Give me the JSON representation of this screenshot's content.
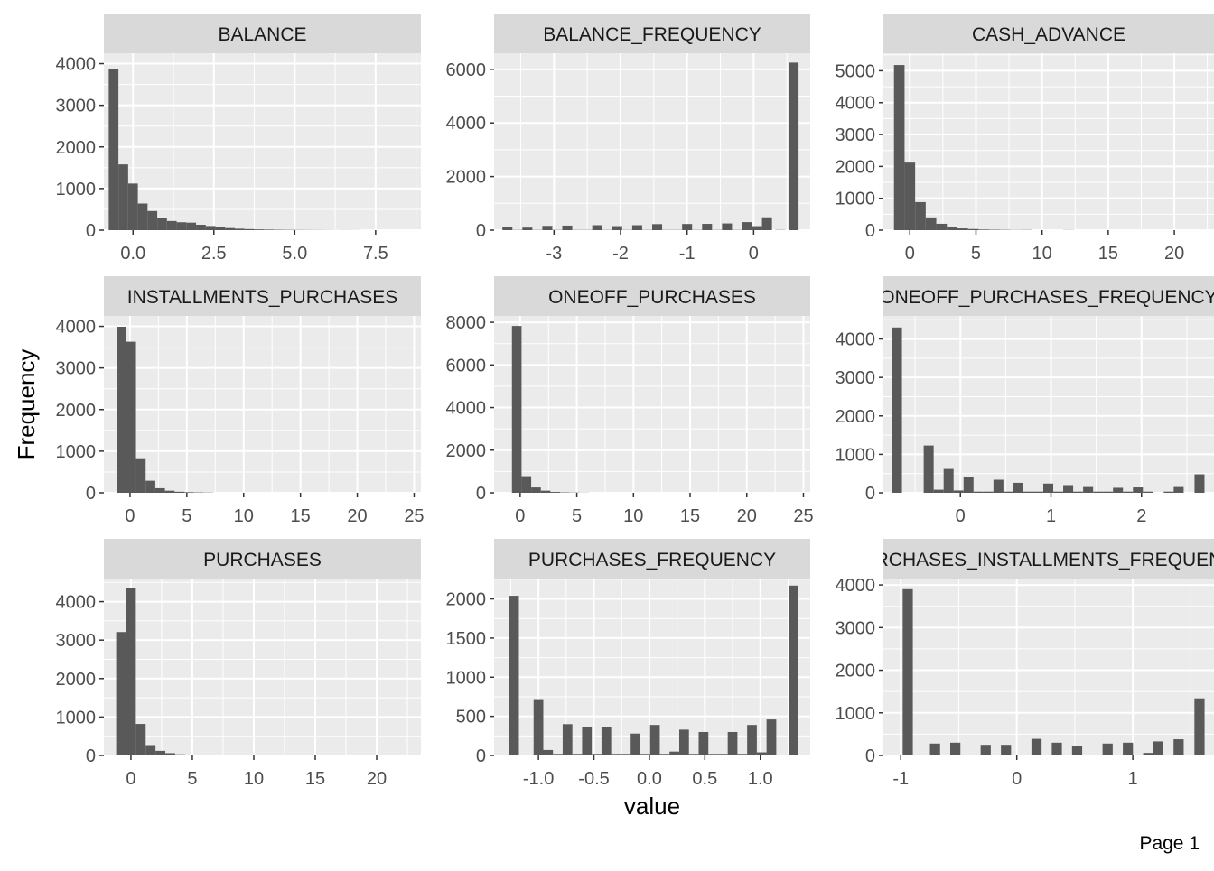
{
  "page": {
    "xlabel": "value",
    "ylabel": "Frequency",
    "footer": "Page 1"
  },
  "colors": {
    "panel_bg": "#ebebeb",
    "strip_bg": "#d9d9d9",
    "grid_major": "#ffffff",
    "bar": "#595959",
    "text": "#4d4d4d",
    "title_text": "#1a1a1a"
  },
  "chart_data": [
    {
      "type": "bar",
      "title": "BALANCE",
      "xlim": [
        -0.9,
        8.9
      ],
      "ylim": [
        0,
        4250
      ],
      "xticks": [
        0,
        2.5,
        5,
        7.5
      ],
      "xtick_labels": [
        "0.0",
        "2.5",
        "5.0",
        "7.5"
      ],
      "yticks": [
        0,
        1000,
        2000,
        3000,
        4000
      ],
      "ytick_labels": [
        "0",
        "1000",
        "2000",
        "3000",
        "4000"
      ],
      "binwidth": 0.3,
      "bins": [
        {
          "x": -0.6,
          "count": 3860
        },
        {
          "x": -0.3,
          "count": 1580
        },
        {
          "x": 0,
          "count": 1120
        },
        {
          "x": 0.3,
          "count": 640
        },
        {
          "x": 0.6,
          "count": 460
        },
        {
          "x": 0.9,
          "count": 300
        },
        {
          "x": 1.2,
          "count": 220
        },
        {
          "x": 1.5,
          "count": 190
        },
        {
          "x": 1.8,
          "count": 180
        },
        {
          "x": 2.1,
          "count": 130
        },
        {
          "x": 2.4,
          "count": 100
        },
        {
          "x": 2.7,
          "count": 70
        },
        {
          "x": 3.0,
          "count": 50
        },
        {
          "x": 3.3,
          "count": 35
        },
        {
          "x": 3.6,
          "count": 25
        },
        {
          "x": 3.9,
          "count": 18
        },
        {
          "x": 4.2,
          "count": 14
        },
        {
          "x": 4.5,
          "count": 10
        },
        {
          "x": 4.8,
          "count": 8
        },
        {
          "x": 5.1,
          "count": 6
        },
        {
          "x": 5.4,
          "count": 5
        },
        {
          "x": 5.7,
          "count": 4
        },
        {
          "x": 6.0,
          "count": 3
        },
        {
          "x": 6.3,
          "count": 2
        },
        {
          "x": 6.6,
          "count": 3
        },
        {
          "x": 6.9,
          "count": 2
        }
      ]
    },
    {
      "type": "bar",
      "title": "BALANCE_FREQUENCY",
      "xlim": [
        -3.9,
        0.85
      ],
      "ylim": [
        0,
        6600
      ],
      "xticks": [
        -3,
        -2,
        -1,
        0
      ],
      "xtick_labels": [
        "-3",
        "-2",
        "-1",
        "0"
      ],
      "yticks": [
        0,
        2000,
        4000,
        6000
      ],
      "ytick_labels": [
        "0",
        "2000",
        "4000",
        "6000"
      ],
      "binwidth": 0.15,
      "bins": [
        {
          "x": -3.7,
          "count": 110
        },
        {
          "x": -3.55,
          "count": 10
        },
        {
          "x": -3.4,
          "count": 95
        },
        {
          "x": -3.25,
          "count": 10
        },
        {
          "x": -3.1,
          "count": 160
        },
        {
          "x": -2.95,
          "count": 10
        },
        {
          "x": -2.8,
          "count": 170
        },
        {
          "x": -2.65,
          "count": 10
        },
        {
          "x": -2.5,
          "count": 10
        },
        {
          "x": -2.35,
          "count": 185
        },
        {
          "x": -2.2,
          "count": 10
        },
        {
          "x": -2.05,
          "count": 150
        },
        {
          "x": -1.9,
          "count": 10
        },
        {
          "x": -1.75,
          "count": 185
        },
        {
          "x": -1.6,
          "count": 10
        },
        {
          "x": -1.45,
          "count": 225
        },
        {
          "x": -1.3,
          "count": 10
        },
        {
          "x": -1.15,
          "count": 10
        },
        {
          "x": -1.0,
          "count": 230
        },
        {
          "x": -0.85,
          "count": 10
        },
        {
          "x": -0.7,
          "count": 235
        },
        {
          "x": -0.55,
          "count": 10
        },
        {
          "x": -0.4,
          "count": 250
        },
        {
          "x": -0.25,
          "count": 10
        },
        {
          "x": -0.1,
          "count": 300
        },
        {
          "x": 0.05,
          "count": 150
        },
        {
          "x": 0.2,
          "count": 480
        },
        {
          "x": 0.4,
          "count": 10
        },
        {
          "x": 0.6,
          "count": 6250
        }
      ]
    },
    {
      "type": "bar",
      "title": "CASH_ADVANCE",
      "xlim": [
        -2.0,
        23.0
      ],
      "ylim": [
        0,
        5550
      ],
      "xticks": [
        0,
        5,
        10,
        15,
        20
      ],
      "xtick_labels": [
        "0",
        "5",
        "10",
        "15",
        "20"
      ],
      "yticks": [
        0,
        1000,
        2000,
        3000,
        4000,
        5000
      ],
      "ytick_labels": [
        "0",
        "1000",
        "2000",
        "3000",
        "4000",
        "5000"
      ],
      "binwidth": 0.8,
      "bins": [
        {
          "x": -0.8,
          "count": 5180
        },
        {
          "x": 0,
          "count": 2120
        },
        {
          "x": 0.8,
          "count": 880
        },
        {
          "x": 1.6,
          "count": 400
        },
        {
          "x": 2.4,
          "count": 200
        },
        {
          "x": 3.2,
          "count": 100
        },
        {
          "x": 4.0,
          "count": 55
        },
        {
          "x": 4.8,
          "count": 35
        },
        {
          "x": 5.6,
          "count": 20
        },
        {
          "x": 6.4,
          "count": 14
        },
        {
          "x": 7.2,
          "count": 10
        },
        {
          "x": 8.0,
          "count": 6
        },
        {
          "x": 8.8,
          "count": 8
        },
        {
          "x": 12.0,
          "count": 5
        }
      ]
    },
    {
      "type": "bar",
      "title": "INSTALLMENTS_PURCHASES",
      "xlim": [
        -2.3,
        25.6
      ],
      "ylim": [
        0,
        4250
      ],
      "xticks": [
        0,
        5,
        10,
        15,
        20,
        25
      ],
      "xtick_labels": [
        "0",
        "5",
        "10",
        "15",
        "20",
        "25"
      ],
      "yticks": [
        0,
        1000,
        2000,
        3000,
        4000
      ],
      "ytick_labels": [
        "0",
        "1000",
        "2000",
        "3000",
        "4000"
      ],
      "binwidth": 0.85,
      "bins": [
        {
          "x": -0.75,
          "count": 3990
        },
        {
          "x": 0.1,
          "count": 3630
        },
        {
          "x": 0.95,
          "count": 830
        },
        {
          "x": 1.8,
          "count": 290
        },
        {
          "x": 2.65,
          "count": 110
        },
        {
          "x": 3.5,
          "count": 50
        },
        {
          "x": 4.35,
          "count": 25
        },
        {
          "x": 5.2,
          "count": 15
        },
        {
          "x": 6.05,
          "count": 10
        },
        {
          "x": 6.9,
          "count": 6
        }
      ]
    },
    {
      "type": "bar",
      "title": "ONEOFF_PURCHASES",
      "xlim": [
        -2.3,
        25.6
      ],
      "ylim": [
        0,
        8300
      ],
      "xticks": [
        0,
        5,
        10,
        15,
        20,
        25
      ],
      "xtick_labels": [
        "0",
        "5",
        "10",
        "15",
        "20",
        "25"
      ],
      "yticks": [
        0,
        2000,
        4000,
        6000,
        8000
      ],
      "ytick_labels": [
        "0",
        "2000",
        "4000",
        "6000",
        "8000"
      ],
      "binwidth": 0.85,
      "bins": [
        {
          "x": -0.3,
          "count": 7830
        },
        {
          "x": 0.55,
          "count": 780
        },
        {
          "x": 1.4,
          "count": 250
        },
        {
          "x": 2.25,
          "count": 100
        },
        {
          "x": 3.1,
          "count": 40
        },
        {
          "x": 3.95,
          "count": 20
        },
        {
          "x": 4.8,
          "count": 12
        },
        {
          "x": 5.65,
          "count": 6
        }
      ]
    },
    {
      "type": "bar",
      "title": "ONEOFF_PURCHASES_FREQUENCY",
      "xlim": [
        -0.85,
        2.8
      ],
      "ylim": [
        0,
        4600
      ],
      "xticks": [
        0,
        1,
        2
      ],
      "xtick_labels": [
        "0",
        "1",
        "2"
      ],
      "yticks": [
        0,
        1000,
        2000,
        3000,
        4000
      ],
      "ytick_labels": [
        "0",
        "1000",
        "2000",
        "3000",
        "4000"
      ],
      "binwidth": 0.11,
      "bins": [
        {
          "x": -0.7,
          "count": 4300
        },
        {
          "x": -0.35,
          "count": 1230
        },
        {
          "x": -0.24,
          "count": 80
        },
        {
          "x": -0.13,
          "count": 620
        },
        {
          "x": -0.02,
          "count": 60
        },
        {
          "x": 0.09,
          "count": 420
        },
        {
          "x": 0.2,
          "count": 30
        },
        {
          "x": 0.31,
          "count": 30
        },
        {
          "x": 0.42,
          "count": 340
        },
        {
          "x": 0.53,
          "count": 30
        },
        {
          "x": 0.64,
          "count": 260
        },
        {
          "x": 0.75,
          "count": 30
        },
        {
          "x": 0.86,
          "count": 30
        },
        {
          "x": 0.97,
          "count": 240
        },
        {
          "x": 1.08,
          "count": 30
        },
        {
          "x": 1.19,
          "count": 200
        },
        {
          "x": 1.3,
          "count": 30
        },
        {
          "x": 1.41,
          "count": 150
        },
        {
          "x": 1.52,
          "count": 30
        },
        {
          "x": 1.63,
          "count": 30
        },
        {
          "x": 1.74,
          "count": 130
        },
        {
          "x": 1.85,
          "count": 30
        },
        {
          "x": 1.96,
          "count": 140
        },
        {
          "x": 2.07,
          "count": 30
        },
        {
          "x": 2.3,
          "count": 30
        },
        {
          "x": 2.41,
          "count": 150
        },
        {
          "x": 2.64,
          "count": 480
        }
      ]
    },
    {
      "type": "bar",
      "title": "PURCHASES",
      "xlim": [
        -2.2,
        23.6
      ],
      "ylim": [
        0,
        4600
      ],
      "xticks": [
        0,
        5,
        10,
        15,
        20
      ],
      "xtick_labels": [
        "0",
        "5",
        "10",
        "15",
        "20"
      ],
      "yticks": [
        0,
        1000,
        2000,
        3000,
        4000
      ],
      "ytick_labels": [
        "0",
        "1000",
        "2000",
        "3000",
        "4000"
      ],
      "binwidth": 0.8,
      "bins": [
        {
          "x": -0.8,
          "count": 3210
        },
        {
          "x": 0,
          "count": 4350
        },
        {
          "x": 0.8,
          "count": 820
        },
        {
          "x": 1.6,
          "count": 270
        },
        {
          "x": 2.4,
          "count": 120
        },
        {
          "x": 3.2,
          "count": 60
        },
        {
          "x": 4.0,
          "count": 30
        },
        {
          "x": 4.8,
          "count": 15
        }
      ]
    },
    {
      "type": "bar",
      "title": "PURCHASES_FREQUENCY",
      "xlim": [
        -1.4,
        1.45
      ],
      "ylim": [
        0,
        2260
      ],
      "xticks": [
        -1.0,
        -0.5,
        0.0,
        0.5,
        1.0
      ],
      "xtick_labels": [
        "-1.0",
        "-0.5",
        "0.0",
        "0.5",
        "1.0"
      ],
      "yticks": [
        0,
        500,
        1000,
        1500,
        2000
      ],
      "ytick_labels": [
        "0",
        "500",
        "1000",
        "1500",
        "2000"
      ],
      "binwidth": 0.0875,
      "bins": [
        {
          "x": -1.22,
          "count": 2040
        },
        {
          "x": -1.0,
          "count": 720
        },
        {
          "x": -0.913,
          "count": 70
        },
        {
          "x": -0.825,
          "count": 20
        },
        {
          "x": -0.738,
          "count": 400
        },
        {
          "x": -0.65,
          "count": 20
        },
        {
          "x": -0.563,
          "count": 360
        },
        {
          "x": -0.475,
          "count": 20
        },
        {
          "x": -0.388,
          "count": 360
        },
        {
          "x": -0.3,
          "count": 20
        },
        {
          "x": -0.213,
          "count": 20
        },
        {
          "x": -0.125,
          "count": 280
        },
        {
          "x": -0.038,
          "count": 20
        },
        {
          "x": 0.05,
          "count": 390
        },
        {
          "x": 0.138,
          "count": 20
        },
        {
          "x": 0.225,
          "count": 50
        },
        {
          "x": 0.313,
          "count": 330
        },
        {
          "x": 0.4,
          "count": 20
        },
        {
          "x": 0.488,
          "count": 300
        },
        {
          "x": 0.575,
          "count": 20
        },
        {
          "x": 0.663,
          "count": 20
        },
        {
          "x": 0.75,
          "count": 300
        },
        {
          "x": 0.838,
          "count": 20
        },
        {
          "x": 0.925,
          "count": 390
        },
        {
          "x": 1.013,
          "count": 40
        },
        {
          "x": 1.1,
          "count": 460
        },
        {
          "x": 1.3,
          "count": 2170
        }
      ]
    },
    {
      "type": "bar",
      "title": "PURCHASES_INSTALLMENTS_FREQUENCY",
      "xlim": [
        -1.15,
        1.7
      ],
      "ylim": [
        0,
        4150
      ],
      "xticks": [
        -1,
        0,
        1
      ],
      "xtick_labels": [
        "-1",
        "0",
        "1"
      ],
      "yticks": [
        0,
        1000,
        2000,
        3000,
        4000
      ],
      "ytick_labels": [
        "0",
        "1000",
        "2000",
        "3000",
        "4000"
      ],
      "binwidth": 0.0875,
      "bins": [
        {
          "x": -0.94,
          "count": 3900
        },
        {
          "x": -0.705,
          "count": 280
        },
        {
          "x": -0.617,
          "count": 20
        },
        {
          "x": -0.53,
          "count": 300
        },
        {
          "x": -0.443,
          "count": 20
        },
        {
          "x": -0.355,
          "count": 20
        },
        {
          "x": -0.268,
          "count": 250
        },
        {
          "x": -0.18,
          "count": 20
        },
        {
          "x": -0.093,
          "count": 250
        },
        {
          "x": -0.005,
          "count": 20
        },
        {
          "x": 0.083,
          "count": 20
        },
        {
          "x": 0.17,
          "count": 390
        },
        {
          "x": 0.258,
          "count": 20
        },
        {
          "x": 0.345,
          "count": 300
        },
        {
          "x": 0.433,
          "count": 20
        },
        {
          "x": 0.52,
          "count": 230
        },
        {
          "x": 0.608,
          "count": 20
        },
        {
          "x": 0.695,
          "count": 20
        },
        {
          "x": 0.783,
          "count": 280
        },
        {
          "x": 0.87,
          "count": 20
        },
        {
          "x": 0.958,
          "count": 300
        },
        {
          "x": 1.045,
          "count": 20
        },
        {
          "x": 1.133,
          "count": 60
        },
        {
          "x": 1.22,
          "count": 330
        },
        {
          "x": 1.308,
          "count": 20
        },
        {
          "x": 1.395,
          "count": 380
        },
        {
          "x": 1.575,
          "count": 1340
        }
      ]
    }
  ]
}
